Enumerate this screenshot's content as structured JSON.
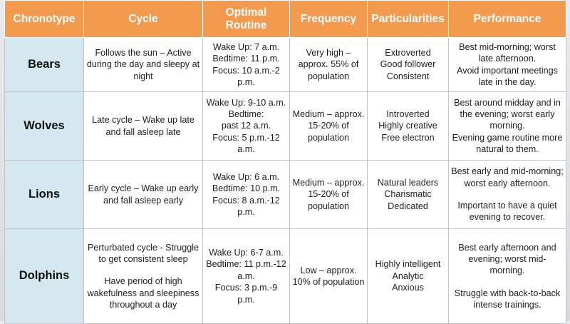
{
  "table": {
    "headers": [
      "Chronotype",
      "Cycle",
      "Optimal Routine",
      "Frequency",
      "Particularities",
      "Performance"
    ],
    "rows": [
      {
        "chronotype": "Bears",
        "cycle": [
          "Follows the sun – Active during the day and sleepy at night"
        ],
        "routine": [
          "Wake Up: 7 a.m.",
          "Bedtime: 11 p.m.",
          "Focus: 10 a.m.-2 p.m."
        ],
        "frequency": "Very high – approx. 55% of population",
        "particularities": [
          "Extroverted",
          "Good follower",
          "Consistent"
        ],
        "performance": [
          "Best mid-morning; worst late afternoon.",
          "Avoid important meetings late in the day."
        ]
      },
      {
        "chronotype": "Wolves",
        "cycle": [
          "Late cycle – Wake up late and fall asleep late"
        ],
        "routine": [
          "Wake Up: 9-10 a.m.",
          "Bedtime:",
          "past 12 a.m.",
          "Focus: 5 p.m.-12 a.m."
        ],
        "frequency": "Medium – approx. 15-20% of population",
        "particularities": [
          "Introverted",
          "Highly creative",
          "Free electron"
        ],
        "performance": [
          "Best around midday and in the evening; worst early morning.",
          "Evening game routine more natural to them."
        ]
      },
      {
        "chronotype": "Lions",
        "cycle": [
          "Early cycle – Wake up early and fall asleep early"
        ],
        "routine": [
          "Wake Up: 6 a.m.",
          "Bedtime: 10 p.m.",
          "Focus: 8 a.m.-12 p.m."
        ],
        "frequency": "Medium – approx. 15-20% of population",
        "particularities": [
          "Natural leaders",
          "Charismatic",
          "Dedicated"
        ],
        "performance": [
          "Best early and mid-morning; worst early afternoon.",
          "",
          "Important to have a quiet evening to recover."
        ]
      },
      {
        "chronotype": "Dolphins",
        "cycle": [
          "Perturbated cycle - Struggle to get consistent sleep",
          "",
          "Have period of high wakefulness and sleepiness throughout a day"
        ],
        "routine": [
          "Wake Up: 6-7 a.m.",
          "Bedtime: 11 p.m.-12 a.m.",
          "Focus: 3 p.m.-9 p.m."
        ],
        "frequency": "Low – approx. 10% of population",
        "particularities": [
          "Highly intelligent",
          "Analytic",
          "Anxious"
        ],
        "performance": [
          "Best early afternoon and evening; worst mid-morning.",
          "",
          "Struggle with back-to-back intense trainings."
        ]
      }
    ]
  }
}
